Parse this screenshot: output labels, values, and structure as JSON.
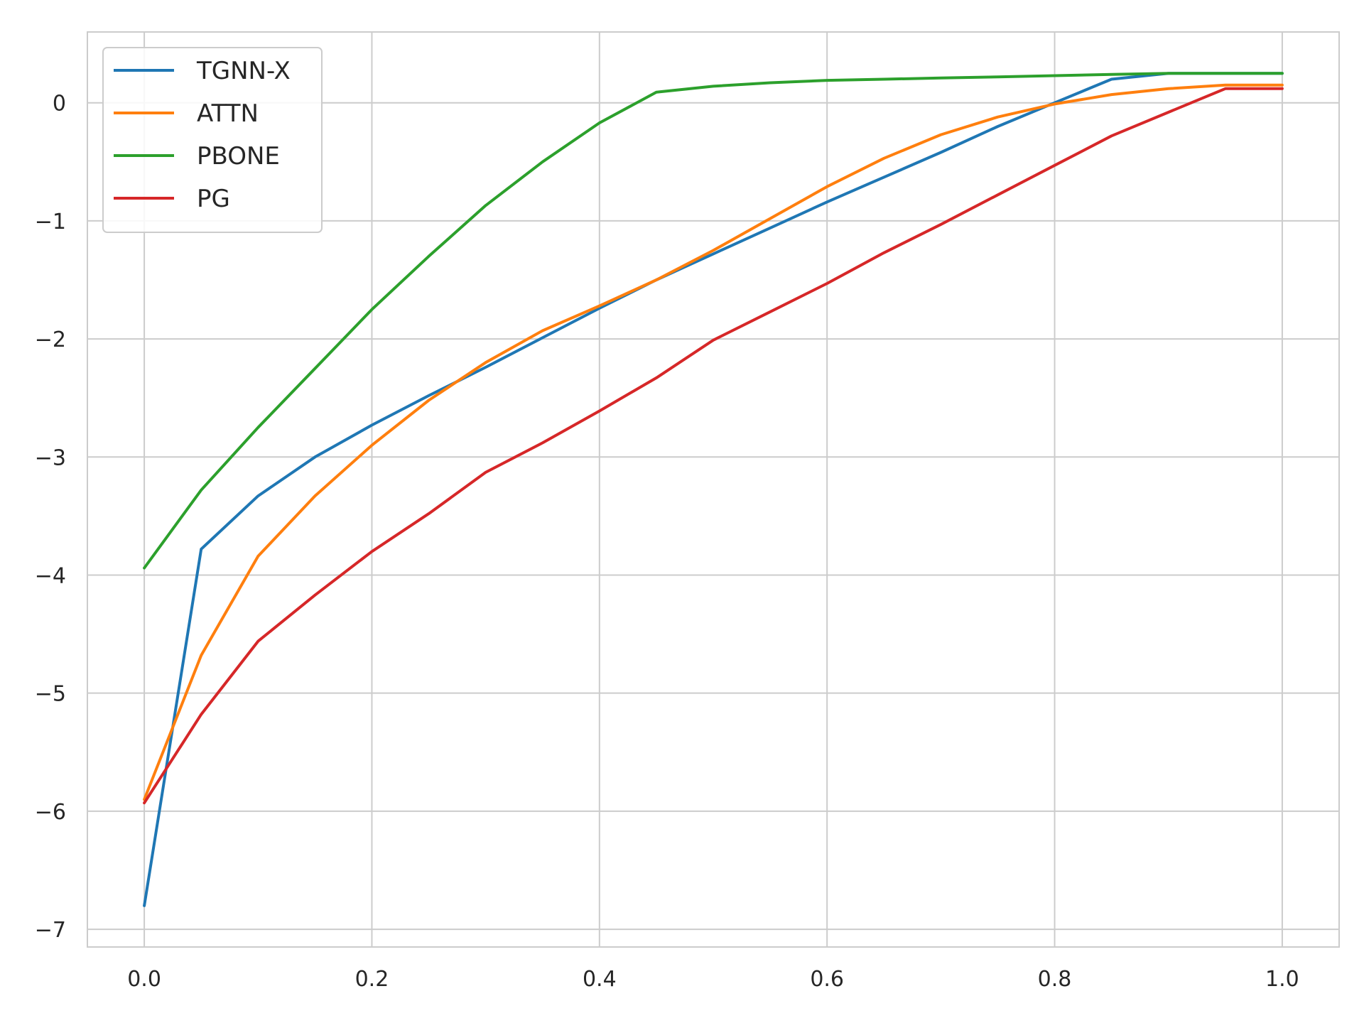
{
  "chart_data": {
    "type": "line",
    "title": "",
    "xlabel": "",
    "ylabel": "",
    "xlim": [
      -0.05,
      1.05
    ],
    "ylim": [
      -7.15,
      0.6
    ],
    "xticks": [
      0.0,
      0.2,
      0.4,
      0.6,
      0.8,
      1.0
    ],
    "xtick_labels": [
      "0.0",
      "0.2",
      "0.4",
      "0.6",
      "0.8",
      "1.0"
    ],
    "yticks": [
      0,
      -1,
      -2,
      -3,
      -4,
      -5,
      -6,
      -7
    ],
    "ytick_labels": [
      "0",
      "−1",
      "−2",
      "−3",
      "−4",
      "−5",
      "−6",
      "−7"
    ],
    "grid": true,
    "legend_position": "top-left",
    "x": [
      0.0,
      0.05,
      0.1,
      0.15,
      0.2,
      0.25,
      0.3,
      0.35,
      0.4,
      0.45,
      0.5,
      0.55,
      0.6,
      0.65,
      0.7,
      0.75,
      0.8,
      0.85,
      0.9,
      0.95,
      1.0
    ],
    "series": [
      {
        "name": "TGNN-X",
        "color": "#1f77b4",
        "values": [
          -6.8,
          -3.78,
          -3.33,
          -3.0,
          -2.73,
          -2.48,
          -2.24,
          -1.99,
          -1.74,
          -1.5,
          -1.28,
          -1.06,
          -0.84,
          -0.63,
          -0.42,
          -0.2,
          0.0,
          0.2,
          0.25,
          0.25,
          0.25
        ]
      },
      {
        "name": "ATTN",
        "color": "#ff7f0e",
        "values": [
          -5.9,
          -4.68,
          -3.84,
          -3.33,
          -2.9,
          -2.52,
          -2.2,
          -1.93,
          -1.72,
          -1.5,
          -1.25,
          -0.98,
          -0.71,
          -0.47,
          -0.27,
          -0.12,
          -0.01,
          0.07,
          0.12,
          0.15,
          0.15
        ]
      },
      {
        "name": "PBONE",
        "color": "#2ca02c",
        "values": [
          -3.94,
          -3.28,
          -2.75,
          -2.25,
          -1.75,
          -1.3,
          -0.87,
          -0.5,
          -0.17,
          0.09,
          0.14,
          0.17,
          0.19,
          0.2,
          0.21,
          0.22,
          0.23,
          0.24,
          0.25,
          0.25,
          0.25
        ]
      },
      {
        "name": "PG",
        "color": "#d62728",
        "values": [
          -5.93,
          -5.18,
          -4.56,
          -4.17,
          -3.8,
          -3.48,
          -3.13,
          -2.88,
          -2.61,
          -2.33,
          -2.01,
          -1.77,
          -1.53,
          -1.27,
          -1.03,
          -0.78,
          -0.53,
          -0.28,
          -0.08,
          0.12,
          0.12
        ]
      }
    ]
  }
}
